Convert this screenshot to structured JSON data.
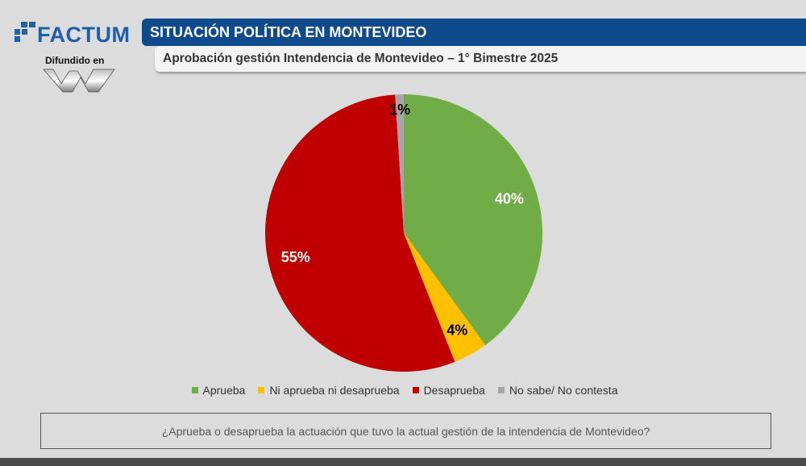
{
  "logo": {
    "brand": "FACTUM",
    "tagline": "Difundido en",
    "mark_icon": "factum-squares-icon",
    "partner_icon": "w-logo-icon",
    "brand_color": "#1f5fa8"
  },
  "header": {
    "title": "SITUACIÓN POLÍTICA EN MONTEVIDEO",
    "subtitle": "Aprobación gestión Intendencia de Montevideo – 1° Bimestre 2025"
  },
  "chart_data": {
    "type": "pie",
    "categories": [
      "Aprueba",
      "Ni aprueba ni desaprueba",
      "Desaprueba",
      "No sabe/ No contesta"
    ],
    "values": [
      40,
      4,
      55,
      1
    ],
    "labels": [
      "40%",
      "4%",
      "55%",
      "1%"
    ],
    "colors": [
      "#70ad47",
      "#ffc000",
      "#c00000",
      "#a6a6a6"
    ],
    "label_colors": [
      "#ffffff",
      "#000000",
      "#ffffff",
      "#000000"
    ],
    "start": "top",
    "direction": "clockwise",
    "legend_position": "bottom"
  },
  "question": "¿Aprueba o desaprueba la actuación que tuvo la actual gestión de la intendencia de Montevideo?"
}
